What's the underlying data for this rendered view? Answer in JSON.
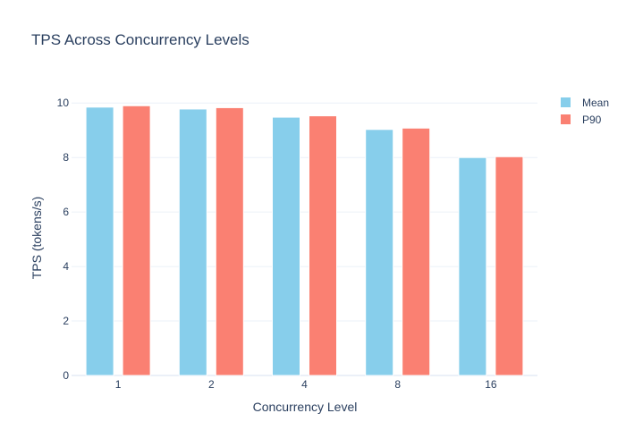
{
  "chart_data": {
    "type": "bar",
    "title": "TPS Across Concurrency Levels",
    "xlabel": "Concurrency Level",
    "ylabel": "TPS (tokens/s)",
    "categories": [
      "1",
      "2",
      "4",
      "8",
      "16"
    ],
    "series": [
      {
        "name": "Mean",
        "color": "#87ceeb",
        "values": [
          9.85,
          9.78,
          9.48,
          9.03,
          8.0
        ]
      },
      {
        "name": "P90",
        "color": "#fa8072",
        "values": [
          9.9,
          9.83,
          9.53,
          9.08,
          8.03
        ]
      }
    ],
    "ylim": [
      0,
      10.5
    ],
    "yticks": [
      0,
      2,
      4,
      6,
      8,
      10
    ],
    "grid": true,
    "legend_position": "top-right"
  }
}
